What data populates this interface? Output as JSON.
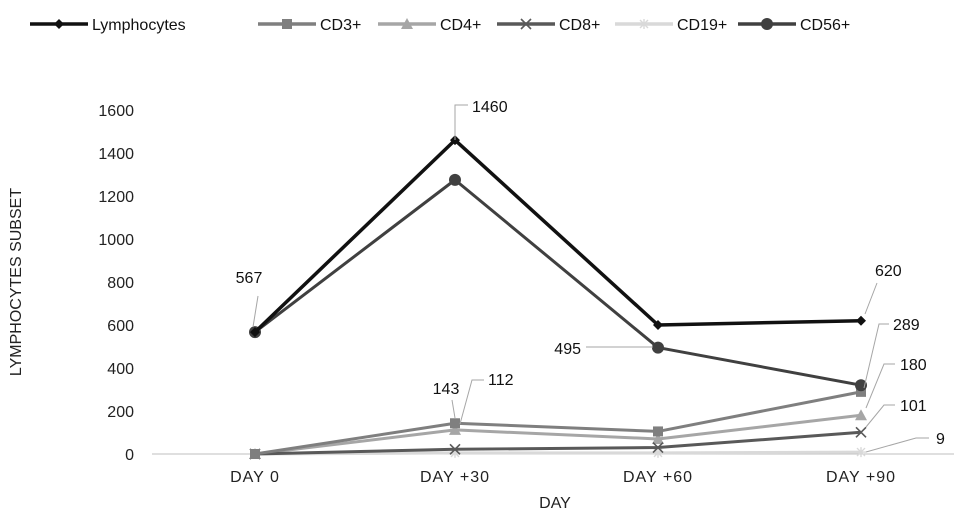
{
  "chart_data": {
    "type": "line",
    "categories": [
      "DAY 0",
      "DAY +30",
      "DAY +60",
      "DAY +90"
    ],
    "xlabel": "DAY",
    "ylabel": "LYMPHOCYTES SUBSET",
    "ylim": [
      0,
      1600
    ],
    "yticks": [
      "0",
      "200",
      "400",
      "600",
      "800",
      "1000",
      "1200",
      "1400",
      "1600"
    ],
    "grid": false,
    "legend": "top",
    "series": [
      {
        "name": "Lymphocytes",
        "values": [
          567,
          1460,
          600,
          620
        ],
        "color": "#111111",
        "marker": "diamond"
      },
      {
        "name": "CD3+",
        "values": [
          0,
          143,
          105,
          289
        ],
        "color": "#7f7f7f",
        "marker": "square"
      },
      {
        "name": "CD4+",
        "values": [
          0,
          112,
          70,
          180
        ],
        "color": "#a6a6a6",
        "marker": "triangle"
      },
      {
        "name": "CD8+",
        "values": [
          0,
          22,
          30,
          101
        ],
        "color": "#595959",
        "marker": "x"
      },
      {
        "name": "CD19+",
        "values": [
          0,
          5,
          5,
          9
        ],
        "color": "#d9d9d9",
        "marker": "star"
      },
      {
        "name": "CD56+",
        "values": [
          567,
          1275,
          495,
          320
        ],
        "color": "#404040",
        "marker": "circle"
      }
    ],
    "annotations": [
      {
        "text": "567",
        "series": 0,
        "index": 0
      },
      {
        "text": "1460",
        "series": 0,
        "index": 1
      },
      {
        "text": "143",
        "series": 1,
        "index": 1
      },
      {
        "text": "112",
        "series": 2,
        "index": 1
      },
      {
        "text": "495",
        "series": 5,
        "index": 2
      },
      {
        "text": "620",
        "series": 0,
        "index": 3
      },
      {
        "text": "289",
        "series": 1,
        "index": 3
      },
      {
        "text": "180",
        "series": 2,
        "index": 3
      },
      {
        "text": "101",
        "series": 3,
        "index": 3
      },
      {
        "text": "9",
        "series": 4,
        "index": 3
      }
    ]
  }
}
